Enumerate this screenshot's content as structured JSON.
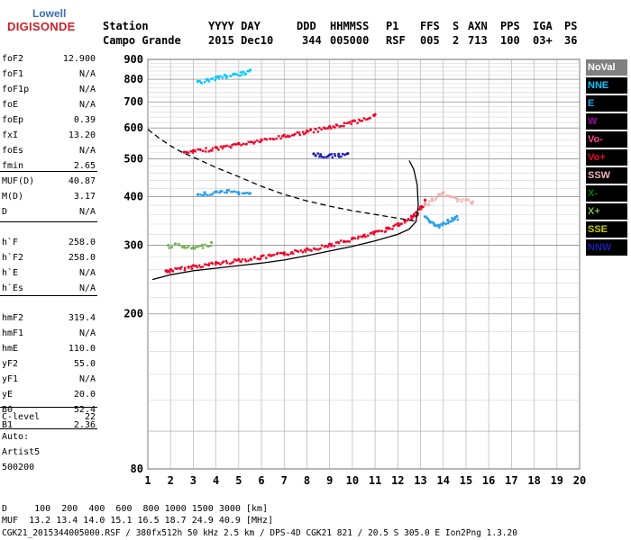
{
  "logo": {
    "line1": "Lowell",
    "line2": "DIGISONDE"
  },
  "header": {
    "labels": [
      "Station",
      "YYYY DAY",
      "DDD",
      "HHMMSS",
      "P1",
      "FFS",
      "S",
      "AXN",
      "PPS",
      "IGA",
      "PS"
    ],
    "values": [
      "Campo Grande",
      "2015 Dec10",
      "344",
      "005000",
      "RSF",
      "005",
      "2",
      "713",
      "100",
      "03+",
      "36"
    ]
  },
  "params": {
    "g1": [
      {
        "label": "foF2",
        "value": "12.900"
      },
      {
        "label": "foF1",
        "value": "N/A"
      },
      {
        "label": "foF1p",
        "value": "N/A"
      },
      {
        "label": "foE",
        "value": "N/A"
      },
      {
        "label": "foEp",
        "value": "0.39"
      },
      {
        "label": "fxI",
        "value": "13.20"
      },
      {
        "label": "foEs",
        "value": "N/A"
      },
      {
        "label": "fmin",
        "value": "2.65"
      }
    ],
    "g2": [
      {
        "label": "MUF(D)",
        "value": "40.87"
      },
      {
        "label": "M(D)",
        "value": "3.17"
      },
      {
        "label": "D",
        "value": "N/A"
      }
    ],
    "g3": [
      {
        "label": "h`F",
        "value": "258.0"
      },
      {
        "label": "h`F2",
        "value": "258.0"
      },
      {
        "label": "h`E",
        "value": "N/A"
      },
      {
        "label": "h`Es",
        "value": "N/A"
      }
    ],
    "g4": [
      {
        "label": "hmF2",
        "value": "319.4"
      },
      {
        "label": "hmF1",
        "value": "N/A"
      },
      {
        "label": "hmE",
        "value": "110.0"
      },
      {
        "label": "yF2",
        "value": "55.0"
      },
      {
        "label": "yF1",
        "value": "N/A"
      },
      {
        "label": "yE",
        "value": "20.0"
      },
      {
        "label": "B0",
        "value": "52.4"
      },
      {
        "label": "B1",
        "value": "2.36"
      }
    ],
    "g5": [
      {
        "label": "C-level",
        "value": "22"
      }
    ]
  },
  "auto": {
    "line1": "Auto:",
    "line2": "Artist5",
    "line3": "500200"
  },
  "legend": [
    {
      "label": "NoVal",
      "color": "#808080"
    },
    {
      "label": "NNE",
      "color": "#00c8ff"
    },
    {
      "label": "E",
      "color": "#28a0e8"
    },
    {
      "label": "W",
      "color": "#a000a0"
    },
    {
      "label": "Vo-",
      "color": "#ff3c96"
    },
    {
      "label": "Vo+",
      "color": "#f0002a"
    },
    {
      "label": "SSW",
      "color": "#f0b4b4"
    },
    {
      "label": "X-",
      "color": "#008000"
    },
    {
      "label": "X+",
      "color": "#78b45a"
    },
    {
      "label": "SSE",
      "color": "#c8c800"
    },
    {
      "label": "NNW",
      "color": "#1e1eb4"
    }
  ],
  "bottom": {
    "line1": "D     100  200  400  600  800 1000 1500 3000 [km]",
    "line2": "MUF  13.2 13.4 14.0 15.1 16.5 18.7 24.9 40.9 [MHz]",
    "line3": "CGK21_2015344005000.RSF / 380fx512h 50 kHz 2.5 km / DPS-4D CGK21 821 / 20.5 S 305.0 E Ion2Png 1.3.20"
  },
  "chart_data": {
    "type": "scatter",
    "xlim": [
      1,
      20
    ],
    "ylim": [
      80,
      900
    ],
    "y_scale": "log",
    "x_ticks": [
      1,
      2,
      3,
      4,
      5,
      6,
      7,
      8,
      9,
      10,
      11,
      12,
      13,
      14,
      15,
      16,
      17,
      18,
      19,
      20
    ],
    "x_tick_labels": [
      "1",
      "2",
      "3",
      "4",
      "5",
      "6",
      "7",
      "8",
      "9",
      "10",
      "11",
      "12",
      "13",
      "14",
      "15",
      "16",
      "17",
      "18",
      "19",
      "20"
    ],
    "y_ticks": [
      80,
      200,
      300,
      400,
      500,
      600,
      700,
      800,
      900
    ],
    "y_tick_labels": [
      "80",
      "200",
      "300",
      "400",
      "500",
      "600",
      "700",
      "800",
      "900"
    ],
    "grid": true,
    "lines": {
      "true_height_profile": {
        "x": [
          1.2,
          2,
          3,
          4,
          5,
          6,
          7,
          8,
          9,
          10,
          11,
          12,
          12.5,
          12.8,
          12.9,
          12.85,
          12.7,
          12.5
        ],
        "y": [
          245,
          252,
          258,
          262,
          266,
          270,
          275,
          282,
          290,
          298,
          308,
          320,
          330,
          345,
          380,
          430,
          470,
          495
        ]
      },
      "muf_curve": {
        "x": [
          1,
          1.5,
          2,
          2.5,
          3,
          4,
          5,
          6,
          7,
          8,
          9,
          10,
          11,
          12,
          12.9
        ],
        "y": [
          595,
          565,
          540,
          520,
          505,
          475,
          450,
          425,
          405,
          390,
          378,
          368,
          360,
          352,
          345
        ]
      }
    },
    "traces": [
      {
        "name": "Vo+",
        "x": [
          1.8,
          2,
          3,
          4,
          5,
          6,
          7,
          8,
          9,
          10,
          10.5,
          11,
          11.5,
          12,
          12.3,
          12.6,
          12.8,
          13,
          13.2
        ],
        "y": [
          258,
          260,
          266,
          271,
          276,
          281,
          287,
          294,
          302,
          313,
          318,
          325,
          332,
          341,
          348,
          356,
          364,
          376,
          392
        ]
      },
      {
        "name": "Vo+",
        "x": [
          2.6,
          3,
          4,
          5,
          6,
          7,
          8,
          9,
          10,
          11
        ],
        "y": [
          520,
          525,
          535,
          548,
          560,
          575,
          590,
          605,
          625,
          650
        ]
      },
      {
        "name": "E",
        "x": [
          13.2,
          13.4,
          13.6,
          13.8,
          14,
          14.2,
          14.4,
          14.6
        ],
        "y": [
          355,
          345,
          340,
          338,
          342,
          348,
          352,
          356
        ]
      },
      {
        "name": "SSW",
        "x": [
          13.2,
          13.5,
          13.8,
          14,
          14.3,
          14.6,
          15,
          15.3
        ],
        "y": [
          380,
          395,
          405,
          410,
          400,
          395,
          392,
          388
        ]
      },
      {
        "name": "E",
        "x": [
          3.2,
          3.5,
          4,
          4.5,
          5,
          5.5
        ],
        "y": [
          405,
          410,
          412,
          415,
          410,
          408
        ]
      },
      {
        "name": "X+",
        "x": [
          1.9,
          2.2,
          2.6,
          3,
          3.4,
          3.8
        ],
        "y": [
          300,
          302,
          298,
          296,
          300,
          305
        ]
      },
      {
        "name": "NNE",
        "x": [
          3.2,
          3.6,
          4,
          4.4,
          4.8,
          5.2,
          5.5
        ],
        "y": [
          790,
          800,
          810,
          820,
          825,
          835,
          845
        ]
      },
      {
        "name": "NNW",
        "x": [
          8.3,
          8.6,
          9,
          9.4,
          9.8
        ],
        "y": [
          515,
          513,
          512,
          514,
          516
        ]
      }
    ]
  }
}
